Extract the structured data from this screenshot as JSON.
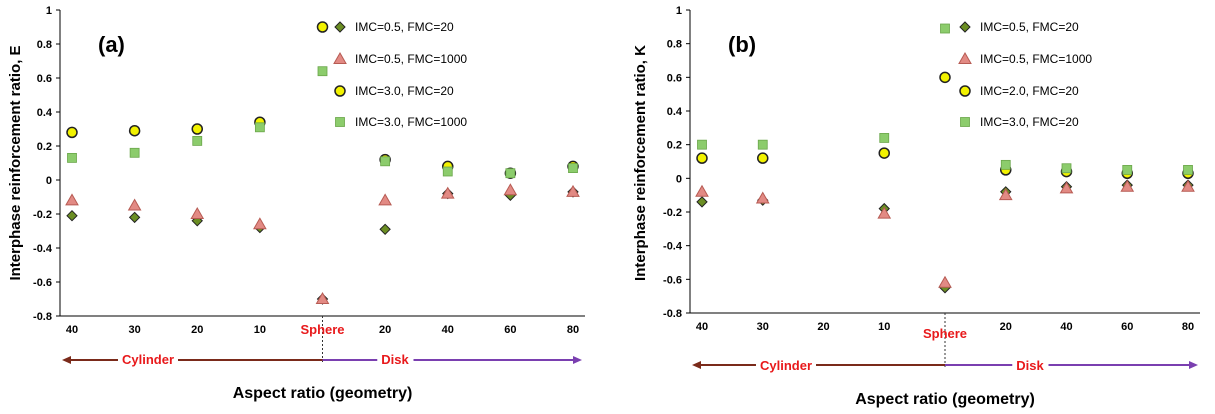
{
  "chart_data": [
    {
      "type": "scatter",
      "panel_label": "(a)",
      "ylabel": "Interphase reinforcement ratio, E",
      "xlabel": "Aspect ratio (geometry)",
      "ylim": [
        -0.8,
        1
      ],
      "yticks": [
        "-0.8",
        "-0.6",
        "-0.4",
        "-0.2",
        "0",
        "0.2",
        "0.4",
        "0.6",
        "0.8",
        "1"
      ],
      "categories": [
        "40",
        "30",
        "20",
        "10",
        "Sphere",
        "20",
        "40",
        "60",
        "80"
      ],
      "region_left": "Cylinder",
      "region_right": "Disk",
      "series": [
        {
          "name": "IMC=0.5, FMC=20",
          "marker": "diamond",
          "fill": "#6b8e23",
          "values": [
            -0.21,
            -0.22,
            -0.24,
            -0.28,
            -0.7,
            -0.29,
            -0.08,
            -0.09,
            -0.07
          ]
        },
        {
          "name": "IMC=0.5, FMC=1000",
          "marker": "triangle",
          "fill": "#e28a84",
          "values": [
            -0.12,
            -0.15,
            -0.2,
            -0.26,
            -0.7,
            -0.12,
            -0.08,
            -0.06,
            -0.07
          ]
        },
        {
          "name": "IMC=3.0, FMC=20",
          "marker": "circle",
          "fill": "#f2f200",
          "values": [
            0.28,
            0.29,
            0.3,
            0.34,
            0.9,
            0.12,
            0.08,
            0.04,
            0.08
          ]
        },
        {
          "name": "IMC=3.0, FMC=1000",
          "marker": "square",
          "fill": "#8ccc6c",
          "values": [
            0.13,
            0.16,
            0.23,
            0.31,
            0.64,
            0.11,
            0.05,
            0.04,
            0.07
          ]
        }
      ]
    },
    {
      "type": "scatter",
      "panel_label": "(b)",
      "ylabel": "Interphase reinforcement ratio, K",
      "xlabel": "Aspect ratio (geometry)",
      "ylim": [
        -0.8,
        1
      ],
      "yticks": [
        "-0.8",
        "-0.6",
        "-0.4",
        "-0.2",
        "0",
        "0.2",
        "0.4",
        "0.6",
        "0.8",
        "1"
      ],
      "categories": [
        "40",
        "30",
        "20",
        "10",
        "Sphere",
        "20",
        "40",
        "60",
        "80"
      ],
      "region_left": "Cylinder",
      "region_right": "Disk",
      "series": [
        {
          "name": "IMC=0.5, FMC=20",
          "marker": "diamond",
          "fill": "#6b8e23",
          "values": [
            -0.14,
            -0.13,
            null,
            -0.18,
            -0.65,
            -0.08,
            -0.05,
            -0.04,
            -0.04
          ]
        },
        {
          "name": "IMC=0.5, FMC=1000",
          "marker": "triangle",
          "fill": "#e28a84",
          "values": [
            -0.08,
            -0.12,
            null,
            -0.21,
            -0.62,
            -0.1,
            -0.06,
            -0.05,
            -0.05
          ]
        },
        {
          "name": "IMC=2.0, FMC=20",
          "marker": "circle",
          "fill": "#f2f200",
          "values": [
            0.12,
            0.12,
            null,
            0.15,
            0.6,
            0.05,
            0.04,
            0.03,
            0.03
          ]
        },
        {
          "name": "IMC=3.0, FMC=20",
          "marker": "square",
          "fill": "#8ccc6c",
          "values": [
            0.2,
            0.2,
            null,
            0.24,
            0.89,
            0.08,
            0.06,
            0.05,
            0.05
          ]
        }
      ]
    }
  ]
}
